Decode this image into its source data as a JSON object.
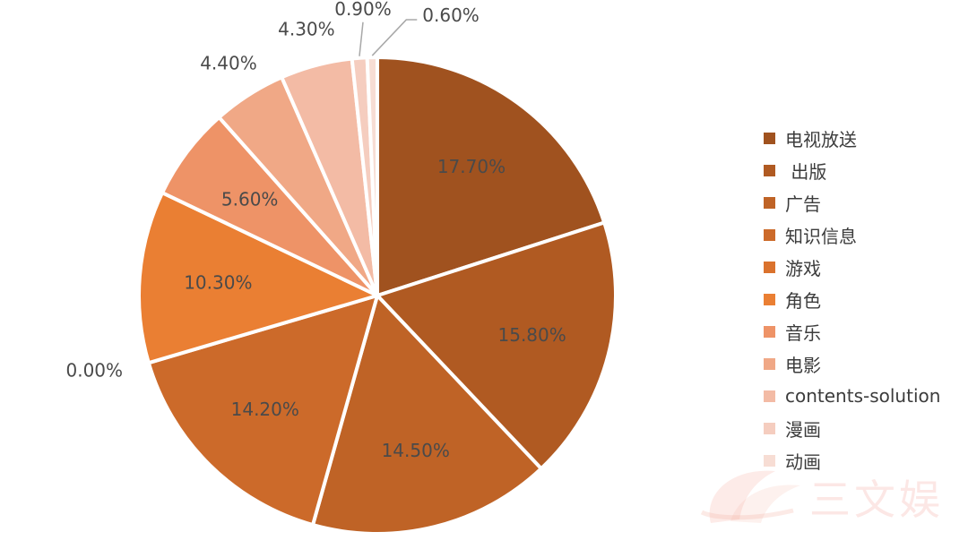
{
  "chart_data": {
    "type": "pie",
    "title": "",
    "slices": [
      {
        "name": "电视放送",
        "value": 17.7,
        "label": "17.70%",
        "color": "#a0521f"
      },
      {
        "name": " 出版",
        "value": 15.8,
        "label": "15.80%",
        "color": "#b05a22"
      },
      {
        "name": "广告",
        "value": 14.5,
        "label": "14.50%",
        "color": "#bf6326"
      },
      {
        "name": "知识信息",
        "value": 14.2,
        "label": "14.20%",
        "color": "#cc6a2a"
      },
      {
        "name": "游戏",
        "value": 0.0,
        "label": "0.00%",
        "color": "#da722d"
      },
      {
        "name": "角色",
        "value": 10.3,
        "label": "10.30%",
        "color": "#ea7f33"
      },
      {
        "name": "音乐",
        "value": 5.6,
        "label": "5.60%",
        "color": "#ee9367"
      },
      {
        "name": "电影",
        "value": 4.4,
        "label": "4.40%",
        "color": "#f0a886"
      },
      {
        "name": "contents-solution",
        "value": 4.3,
        "label": "4.30%",
        "color": "#f3bba5"
      },
      {
        "name": "漫画",
        "value": 0.9,
        "label": "0.90%",
        "color": "#f5cdbf"
      },
      {
        "name": "动画",
        "value": 0.6,
        "label": "0.60%",
        "color": "#f7ddd4"
      }
    ],
    "legend_position": "right"
  },
  "watermark": {
    "text": "三文娱",
    "color": "#f4b3a8"
  }
}
